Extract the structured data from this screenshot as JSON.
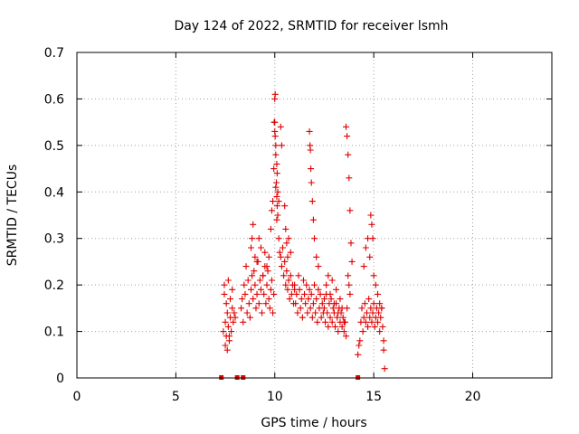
{
  "chart_data": {
    "type": "scatter",
    "title": "Day 124 of 2022, SRMTID for receiver lsmh",
    "xlabel": "GPS time / hours",
    "ylabel": "SRMTID / TECUs",
    "xlim": [
      0,
      24
    ],
    "ylim": [
      0,
      0.7
    ],
    "xticks": [
      0,
      5,
      10,
      15,
      20
    ],
    "xtick_labels": [
      "0",
      "5",
      "10",
      "15",
      "20"
    ],
    "yticks": [
      0,
      0.1,
      0.2,
      0.3,
      0.4,
      0.5,
      0.6,
      0.7
    ],
    "ytick_labels": [
      "0",
      "0.1",
      "0.2",
      "0.3",
      "0.4",
      "0.5",
      "0.6",
      "0.7"
    ],
    "grid": true,
    "marker": "+",
    "color": "#e00000",
    "zero_markers": [
      7.3,
      8.1,
      8.4,
      14.2
    ],
    "series": [
      {
        "name": "SRMTID",
        "x": [
          7.4,
          7.45,
          7.5,
          7.55,
          7.6,
          7.65,
          7.7,
          7.75,
          7.8,
          7.85,
          7.9,
          7.45,
          7.55,
          7.65,
          7.75,
          7.85,
          7.95,
          8.0,
          7.5,
          7.6,
          7.7,
          8.3,
          8.35,
          8.4,
          8.45,
          8.5,
          8.55,
          8.6,
          8.65,
          8.7,
          8.75,
          8.8,
          8.85,
          8.9,
          8.95,
          9.0,
          9.05,
          9.1,
          9.15,
          9.2,
          9.25,
          9.3,
          9.35,
          9.4,
          9.45,
          9.5,
          9.55,
          9.6,
          9.65,
          9.7,
          9.75,
          9.8,
          9.85,
          9.9,
          9.95,
          8.8,
          8.85,
          8.9,
          9.0,
          9.1,
          9.2,
          9.3,
          9.4,
          9.5,
          9.6,
          9.7,
          9.8,
          9.85,
          9.9,
          9.95,
          9.97,
          10.0,
          10.02,
          10.05,
          10.08,
          10.1,
          10.12,
          10.15,
          10.2,
          10.25,
          10.3,
          10.35,
          10.4,
          10.45,
          10.5,
          10.55,
          10.6,
          10.65,
          10.7,
          10.75,
          10.8,
          10.85,
          10.9,
          10.95,
          11.0,
          10.0,
          10.0,
          10.02,
          10.05,
          10.1,
          10.12,
          10.15,
          10.2,
          10.05,
          10.1,
          10.3,
          10.35,
          10.5,
          10.55,
          10.6,
          10.65,
          10.7,
          10.8,
          11.0,
          11.05,
          11.1,
          11.15,
          11.2,
          11.25,
          11.3,
          11.35,
          11.4,
          11.45,
          11.5,
          11.55,
          11.6,
          11.65,
          11.7,
          11.75,
          11.8,
          11.85,
          11.9,
          11.95,
          12.0,
          12.05,
          12.1,
          12.15,
          12.2,
          12.25,
          12.3,
          12.35,
          12.4,
          12.45,
          12.5,
          11.75,
          11.78,
          11.8,
          11.82,
          11.85,
          11.9,
          11.95,
          12.0,
          12.1,
          12.2,
          12.5,
          12.55,
          12.6,
          12.65,
          12.7,
          12.75,
          12.8,
          12.85,
          12.9,
          12.95,
          13.0,
          13.05,
          13.1,
          13.15,
          13.2,
          13.25,
          13.3,
          13.35,
          13.4,
          13.45,
          13.5,
          13.55,
          13.6,
          12.6,
          12.7,
          12.8,
          12.9,
          13.0,
          13.1,
          13.2,
          13.3,
          13.4,
          13.5,
          13.6,
          13.65,
          13.7,
          13.75,
          13.8,
          13.85,
          13.9,
          13.7,
          13.75,
          13.8,
          13.65,
          14.2,
          14.25,
          14.3,
          14.35,
          14.4,
          14.45,
          14.5,
          14.55,
          14.6,
          14.65,
          14.7,
          14.75,
          14.8,
          14.85,
          14.9,
          14.95,
          15.0,
          15.05,
          15.1,
          15.15,
          15.2,
          15.25,
          15.3,
          15.35,
          15.4,
          15.45,
          15.5,
          14.5,
          14.6,
          14.7,
          14.8,
          14.85,
          14.9,
          14.95,
          15.0,
          15.1,
          15.2,
          15.3,
          15.4,
          15.5,
          15.55
        ],
        "y": [
          0.1,
          0.18,
          0.12,
          0.09,
          0.14,
          0.11,
          0.08,
          0.13,
          0.1,
          0.15,
          0.12,
          0.2,
          0.16,
          0.21,
          0.17,
          0.19,
          0.14,
          0.13,
          0.07,
          0.06,
          0.09,
          0.15,
          0.17,
          0.12,
          0.2,
          0.18,
          0.24,
          0.14,
          0.21,
          0.16,
          0.13,
          0.19,
          0.22,
          0.17,
          0.23,
          0.2,
          0.15,
          0.18,
          0.25,
          0.16,
          0.21,
          0.19,
          0.14,
          0.22,
          0.18,
          0.24,
          0.16,
          0.2,
          0.23,
          0.17,
          0.15,
          0.19,
          0.21,
          0.14,
          0.18,
          0.28,
          0.3,
          0.33,
          0.26,
          0.25,
          0.3,
          0.28,
          0.22,
          0.27,
          0.24,
          0.26,
          0.32,
          0.36,
          0.38,
          0.45,
          0.55,
          0.6,
          0.61,
          0.5,
          0.42,
          0.39,
          0.37,
          0.35,
          0.3,
          0.27,
          0.26,
          0.24,
          0.28,
          0.22,
          0.25,
          0.2,
          0.23,
          0.19,
          0.21,
          0.17,
          0.22,
          0.18,
          0.2,
          0.16,
          0.19,
          0.55,
          0.53,
          0.52,
          0.48,
          0.46,
          0.44,
          0.4,
          0.38,
          0.41,
          0.34,
          0.54,
          0.5,
          0.37,
          0.32,
          0.29,
          0.26,
          0.3,
          0.27,
          0.2,
          0.16,
          0.18,
          0.14,
          0.22,
          0.19,
          0.15,
          0.17,
          0.13,
          0.21,
          0.18,
          0.16,
          0.2,
          0.14,
          0.17,
          0.19,
          0.15,
          0.18,
          0.13,
          0.16,
          0.2,
          0.14,
          0.17,
          0.12,
          0.19,
          0.15,
          0.18,
          0.13,
          0.16,
          0.14,
          0.17,
          0.53,
          0.5,
          0.49,
          0.45,
          0.42,
          0.38,
          0.34,
          0.3,
          0.26,
          0.24,
          0.15,
          0.12,
          0.18,
          0.14,
          0.11,
          0.16,
          0.13,
          0.17,
          0.12,
          0.15,
          0.14,
          0.11,
          0.16,
          0.13,
          0.1,
          0.15,
          0.12,
          0.14,
          0.11,
          0.13,
          0.1,
          0.12,
          0.09,
          0.2,
          0.22,
          0.18,
          0.21,
          0.16,
          0.19,
          0.14,
          0.17,
          0.15,
          0.12,
          0.54,
          0.52,
          0.48,
          0.43,
          0.36,
          0.29,
          0.25,
          0.22,
          0.2,
          0.18,
          0.15,
          0.05,
          0.07,
          0.08,
          0.12,
          0.15,
          0.1,
          0.13,
          0.16,
          0.12,
          0.14,
          0.11,
          0.17,
          0.13,
          0.15,
          0.12,
          0.14,
          0.16,
          0.11,
          0.13,
          0.15,
          0.12,
          0.14,
          0.1,
          0.13,
          0.15,
          0.11,
          0.08,
          0.24,
          0.28,
          0.3,
          0.26,
          0.35,
          0.33,
          0.3,
          0.22,
          0.2,
          0.18,
          0.16,
          0.15,
          0.06,
          0.02
        ]
      }
    ]
  }
}
